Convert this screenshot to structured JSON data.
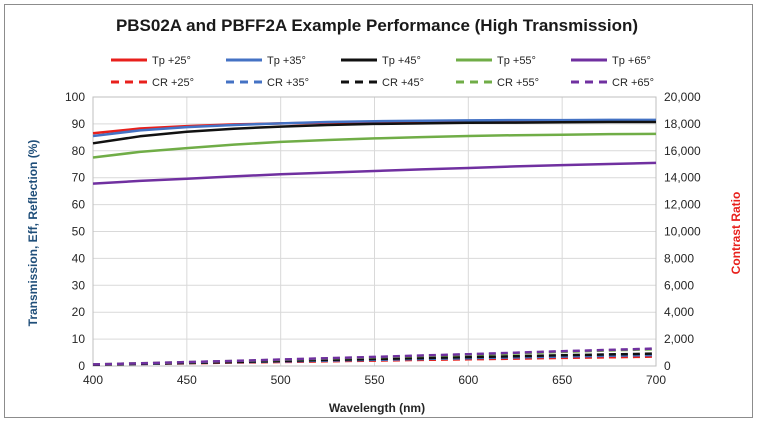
{
  "chart_data": {
    "type": "line",
    "title": "PBS02A and PBFF2A Example Performance (High Transmission)",
    "xlabel": "Wavelength (nm)",
    "ylabel_left": "Transmission, Eff, Reflection (%)",
    "ylabel_right": "Contrast Ratio",
    "xlim": [
      400,
      700
    ],
    "ylim_left": [
      0,
      100
    ],
    "ylim_right": [
      0,
      20000
    ],
    "x_ticks": [
      "400",
      "450",
      "500",
      "550",
      "600",
      "650",
      "700"
    ],
    "y_left_ticks": [
      "0",
      "10",
      "20",
      "30",
      "40",
      "50",
      "60",
      "70",
      "80",
      "90",
      "100"
    ],
    "y_right_ticks": [
      "0",
      "2,000",
      "4,000",
      "6,000",
      "8,000",
      "10,000",
      "12,000",
      "14,000",
      "16,000",
      "18,000",
      "20,000"
    ],
    "grid": true,
    "legend_position": "top",
    "x": [
      400,
      425,
      450,
      475,
      500,
      525,
      550,
      575,
      600,
      625,
      650,
      675,
      700
    ],
    "series": [
      {
        "name": "Tp +25°",
        "axis": "left",
        "style": "solid",
        "color": "#e8201c",
        "values": [
          86.5,
          88.3,
          89.2,
          89.8,
          90.2,
          90.5,
          90.7,
          90.9,
          91.0,
          91.0,
          91.1,
          91.1,
          91.1
        ]
      },
      {
        "name": "Tp +35°",
        "axis": "left",
        "style": "solid",
        "color": "#4472c4",
        "values": [
          85.5,
          87.6,
          88.8,
          89.6,
          90.2,
          90.7,
          91.0,
          91.2,
          91.3,
          91.4,
          91.4,
          91.5,
          91.5
        ]
      },
      {
        "name": "Tp +45°",
        "axis": "left",
        "style": "solid",
        "color": "#111111",
        "values": [
          82.8,
          85.4,
          87.1,
          88.2,
          89.0,
          89.6,
          90.0,
          90.2,
          90.4,
          90.5,
          90.6,
          90.7,
          90.7
        ]
      },
      {
        "name": "Tp +55°",
        "axis": "left",
        "style": "solid",
        "color": "#70ad47",
        "values": [
          77.5,
          79.6,
          81.0,
          82.3,
          83.3,
          84.0,
          84.6,
          85.1,
          85.5,
          85.8,
          86.0,
          86.2,
          86.3
        ]
      },
      {
        "name": "Tp +65°",
        "axis": "left",
        "style": "solid",
        "color": "#7030a0",
        "values": [
          67.8,
          68.8,
          69.6,
          70.5,
          71.3,
          71.9,
          72.5,
          73.1,
          73.6,
          74.2,
          74.7,
          75.1,
          75.5
        ]
      },
      {
        "name": "CR +25°",
        "axis": "right",
        "style": "dashed",
        "color": "#e8201c",
        "values": [
          100,
          150,
          200,
          250,
          300,
          350,
          400,
          450,
          500,
          550,
          600,
          650,
          700
        ]
      },
      {
        "name": "CR +35°",
        "axis": "right",
        "style": "dashed",
        "color": "#4472c4",
        "values": [
          100,
          150,
          220,
          280,
          340,
          400,
          460,
          520,
          580,
          640,
          700,
          760,
          820
        ]
      },
      {
        "name": "CR +45°",
        "axis": "right",
        "style": "dashed",
        "color": "#111111",
        "values": [
          100,
          160,
          230,
          300,
          380,
          450,
          520,
          590,
          660,
          730,
          800,
          860,
          920
        ]
      },
      {
        "name": "CR +55°",
        "axis": "right",
        "style": "dashed",
        "color": "#70ad47",
        "values": [
          120,
          200,
          280,
          370,
          460,
          560,
          650,
          740,
          830,
          930,
          1050,
          1150,
          1250
        ]
      },
      {
        "name": "CR +65°",
        "axis": "right",
        "style": "dashed",
        "color": "#7030a0",
        "values": [
          120,
          200,
          290,
          380,
          480,
          580,
          680,
          780,
          880,
          990,
          1100,
          1200,
          1300
        ]
      }
    ]
  }
}
